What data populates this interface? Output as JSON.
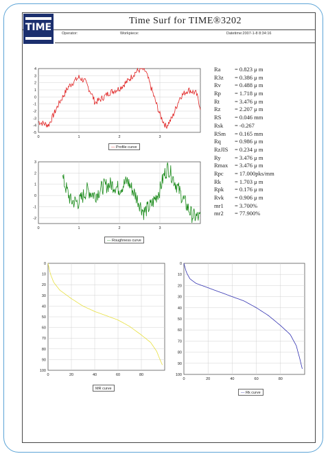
{
  "header": {
    "logo_text": "TIME",
    "title": "Time Surf for TIME®3202",
    "operator_label": "Operator:",
    "workpiece_label": "Workpiece:",
    "datetime_label": "Datetime:2007-1-8 8:34:16"
  },
  "parameters": [
    {
      "name": "Ra",
      "value": "= 0.823 μ m"
    },
    {
      "name": "R3z",
      "value": "= 0.386 μ m"
    },
    {
      "name": "Rv",
      "value": "= 0.488 μ m"
    },
    {
      "name": "Rp",
      "value": "= 1.718 μ m"
    },
    {
      "name": "Rt",
      "value": "= 3.476 μ m"
    },
    {
      "name": "Rz",
      "value": "= 2.207 μ m"
    },
    {
      "name": "RS",
      "value": "= 0.046 mm"
    },
    {
      "name": "Rsk",
      "value": "= -0.267"
    },
    {
      "name": "RSm",
      "value": "= 0.165 mm"
    },
    {
      "name": "Rq",
      "value": "= 0.986 μ m"
    },
    {
      "name": "RzJIS",
      "value": "= 0.234 μ m"
    },
    {
      "name": "Ry",
      "value": "= 3.476 μ m"
    },
    {
      "name": "Rmax",
      "value": "= 3.476 μ m"
    },
    {
      "name": "Rpc",
      "value": "= 17.000pks/mm"
    },
    {
      "name": "Rk",
      "value": "= 1.703 μ m"
    },
    {
      "name": "Rpk",
      "value": "= 0.176 μ m"
    },
    {
      "name": "Rvk",
      "value": "= 0.906 μ m"
    },
    {
      "name": "mr1",
      "value": "= 3.700%"
    },
    {
      "name": "mr2",
      "value": "= 77.900%"
    }
  ],
  "chart_data": [
    {
      "type": "line",
      "legend": "Profile curve",
      "color": "#e02020",
      "xlim": [
        0,
        4
      ],
      "ylim": [
        -5,
        4
      ],
      "xticks": [
        "0",
        "1",
        "2",
        "3"
      ],
      "yticks": [
        "4",
        "3",
        "2",
        "1",
        "0",
        "-1",
        "-2",
        "-3",
        "-4",
        "-5"
      ],
      "x": [
        0,
        0.25,
        0.5,
        0.75,
        1.0,
        1.15,
        1.3,
        1.4,
        1.55,
        1.75,
        2.0,
        2.2,
        2.4,
        2.55,
        2.65,
        2.8,
        3.0,
        3.15,
        3.3,
        3.5,
        3.7,
        3.9,
        4.0
      ],
      "y": [
        -3.5,
        -4.0,
        -1.0,
        1.5,
        2.8,
        2.2,
        0.6,
        -0.8,
        -0.3,
        0.6,
        1.2,
        2.2,
        3.5,
        4.0,
        3.6,
        1.0,
        -2.5,
        -4.2,
        -3.0,
        0.0,
        1.0,
        0.5,
        -1.5
      ]
    },
    {
      "type": "line",
      "legend": "Roughness curve",
      "color": "#1a8a1a",
      "xlim": [
        0,
        4
      ],
      "ylim": [
        -2.5,
        3
      ],
      "xticks": [
        "0",
        "1",
        "2",
        "3"
      ],
      "yticks": [
        "3",
        "2",
        "1",
        "0",
        "-1",
        "-2"
      ],
      "x": [
        0.6,
        0.8,
        1.0,
        1.2,
        1.4,
        1.6,
        1.8,
        2.0,
        2.2,
        2.4,
        2.6,
        2.8,
        3.0,
        3.1,
        3.2,
        3.4,
        3.6,
        3.8,
        4.0
      ],
      "y": [
        1.5,
        -0.5,
        -0.6,
        0.5,
        0.0,
        0.8,
        1.0,
        0.6,
        1.3,
        0.0,
        -1.5,
        -0.8,
        0.5,
        1.8,
        2.5,
        1.0,
        -0.5,
        -1.8,
        -2.0
      ]
    },
    {
      "type": "line",
      "legend": "MR curve",
      "color": "#e8e040",
      "xlim": [
        0,
        100
      ],
      "ylim": [
        0,
        100
      ],
      "xticks": [
        "0",
        "20",
        "40",
        "60",
        "80"
      ],
      "yticks": [
        "0",
        "10",
        "20",
        "30",
        "40",
        "50",
        "60",
        "70",
        "80",
        "90",
        "100"
      ],
      "x": [
        0,
        2,
        5,
        10,
        20,
        30,
        40,
        50,
        60,
        70,
        80,
        88,
        93,
        96,
        98
      ],
      "y": [
        0,
        10,
        18,
        25,
        33,
        40,
        45,
        49,
        53,
        59,
        67,
        74,
        82,
        90,
        95
      ]
    },
    {
      "type": "line",
      "legend": "Rk curve",
      "color": "#3030b0",
      "xlim": [
        0,
        100
      ],
      "ylim": [
        0,
        100
      ],
      "xticks": [
        "0",
        "20",
        "40",
        "60",
        "80"
      ],
      "yticks": [
        "0",
        "10",
        "20",
        "30",
        "40",
        "50",
        "60",
        "70",
        "80",
        "90",
        "100"
      ],
      "x": [
        0,
        2,
        5,
        10,
        20,
        30,
        40,
        50,
        60,
        70,
        80,
        88,
        93,
        96,
        98
      ],
      "y": [
        0,
        8,
        14,
        18,
        22,
        26,
        30,
        34,
        40,
        47,
        56,
        64,
        74,
        86,
        95
      ]
    }
  ]
}
